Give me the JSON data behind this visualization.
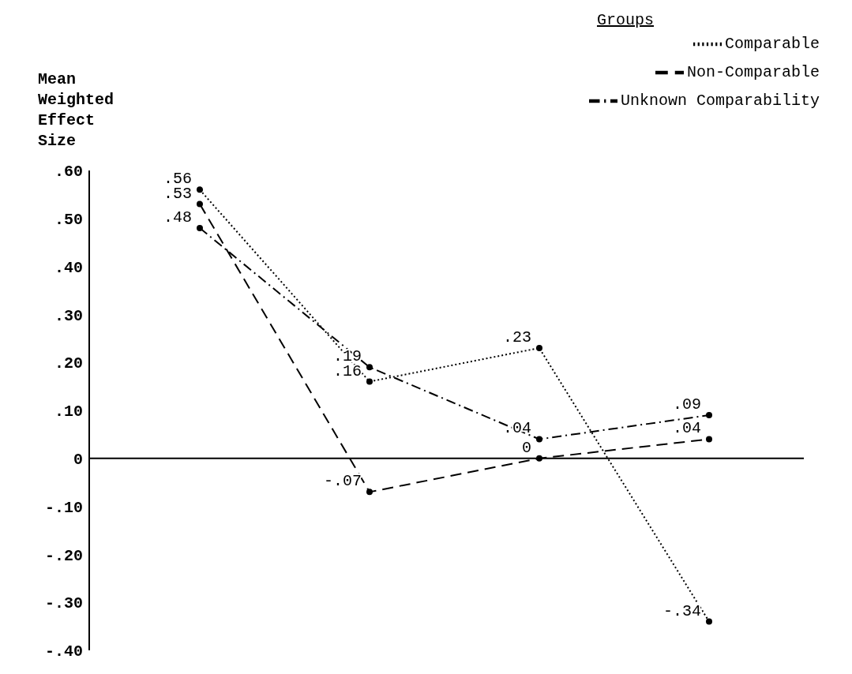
{
  "chart_data": {
    "type": "line",
    "ylabel": "Mean Weighted Effect Size",
    "legend_title": "Groups",
    "categories": [
      null,
      null,
      null,
      null
    ],
    "series": [
      {
        "name": "Comparable",
        "color": "#000000",
        "line_style": "dotted",
        "values": [
          0.56,
          0.16,
          0.23,
          -0.34
        ],
        "value_labels": [
          ".56",
          ".16",
          ".23",
          "-.34"
        ]
      },
      {
        "name": "Non-Comparable",
        "color": "#000000",
        "line_style": "dashed",
        "values": [
          0.53,
          -0.07,
          0,
          0.04
        ],
        "value_labels": [
          ".53",
          "-.07",
          "0",
          ".04"
        ]
      },
      {
        "name": "Unknown Comparability",
        "color": "#000000",
        "line_style": "dashdot",
        "values": [
          0.48,
          0.19,
          0.04,
          0.09
        ],
        "value_labels": [
          ".48",
          ".19",
          ".04",
          ".09"
        ]
      }
    ],
    "ylim": [
      -0.4,
      0.6
    ],
    "yticks": [
      {
        "value": 0.6,
        "label": ".60"
      },
      {
        "value": 0.5,
        "label": ".50"
      },
      {
        "value": 0.4,
        "label": ".40"
      },
      {
        "value": 0.3,
        "label": ".30"
      },
      {
        "value": 0.2,
        "label": ".20"
      },
      {
        "value": 0.1,
        "label": ".10"
      },
      {
        "value": 0,
        "label": "0"
      },
      {
        "value": -0.1,
        "label": "-.10"
      },
      {
        "value": -0.2,
        "label": "-.20"
      },
      {
        "value": -0.3,
        "label": "-.30"
      },
      {
        "value": -0.4,
        "label": "-.40"
      }
    ],
    "ref_lines": [
      {
        "axis": "y",
        "value": 0,
        "color": "#000000"
      }
    ],
    "tick_labels": "y",
    "grid": false,
    "legend": "top right",
    "marker": "circle"
  }
}
